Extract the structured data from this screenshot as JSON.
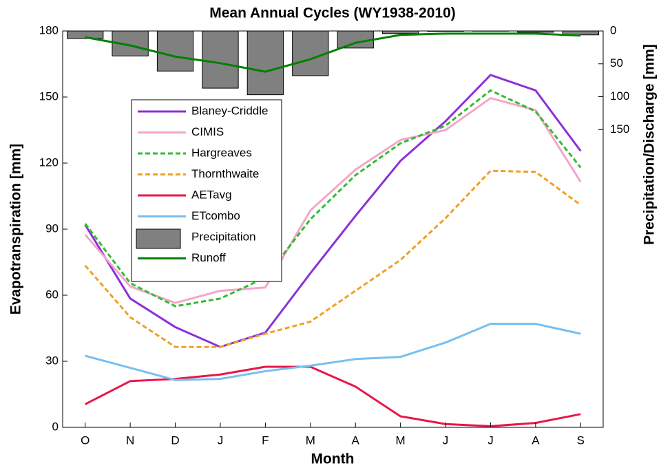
{
  "chart_data": {
    "type": "line",
    "title": "Mean Annual Cycles (WY1938-2010)",
    "xlabel": "Month",
    "ylabel": "Evapotranspiration [mm]",
    "y2label": "Precipitation/Discharge [mm]",
    "categories": [
      "O",
      "N",
      "D",
      "J",
      "F",
      "M",
      "A",
      "M",
      "J",
      "J",
      "A",
      "S"
    ],
    "ylim": [
      0,
      180
    ],
    "yticks": [
      0,
      30,
      60,
      90,
      120,
      150,
      180
    ],
    "y2lim": [
      0,
      603
    ],
    "y2ticks": [
      0,
      50,
      100,
      150
    ],
    "y2_inverted": true,
    "grid": false,
    "legend": "upper left",
    "series": [
      {
        "name": "Precipitation",
        "type": "bar",
        "axis": "y2",
        "color": "#808080",
        "values": [
          11.5,
          38,
          61,
          87,
          97,
          68,
          26,
          4,
          0.5,
          0.3,
          2,
          6
        ]
      },
      {
        "name": "Runoff",
        "type": "line",
        "axis": "y2",
        "color": "#008000",
        "values": [
          9.5,
          22,
          39,
          49,
          62,
          43,
          18,
          6,
          4,
          4,
          4,
          7
        ]
      },
      {
        "name": "Blaney-Criddle",
        "type": "line",
        "color": "#8b30d8",
        "values": [
          92,
          58.5,
          45.5,
          36.5,
          43,
          70,
          96,
          121,
          139,
          160,
          153,
          125.5
        ]
      },
      {
        "name": "CIMIS",
        "type": "line",
        "color": "#f4a6c8",
        "values": [
          87.5,
          64,
          56.5,
          62,
          63.5,
          98.5,
          117,
          130.5,
          135,
          149.5,
          144,
          111.5
        ]
      },
      {
        "name": "Hargreaves",
        "type": "line",
        "dash": true,
        "color": "#33bb33",
        "values": [
          92.5,
          65.5,
          55,
          58.5,
          68,
          94.5,
          114.5,
          129,
          137,
          153,
          143.5,
          118
        ]
      },
      {
        "name": "Thornthwaite",
        "type": "line",
        "dash": true,
        "color": "#f0a020",
        "values": [
          73.5,
          50,
          36.5,
          36.5,
          42.5,
          48,
          62,
          76,
          95,
          116.5,
          116,
          101
        ]
      },
      {
        "name": "AETavg",
        "type": "line",
        "color": "#e8164a",
        "values": [
          10.5,
          21,
          22,
          24,
          27.5,
          27.5,
          18.5,
          5,
          1.5,
          0.5,
          2,
          6
        ]
      },
      {
        "name": "ETcombo",
        "type": "line",
        "color": "#78bff0",
        "values": [
          32.5,
          27,
          21.5,
          22,
          25.5,
          28,
          31,
          32,
          38.5,
          47,
          47,
          42.5
        ]
      }
    ]
  }
}
